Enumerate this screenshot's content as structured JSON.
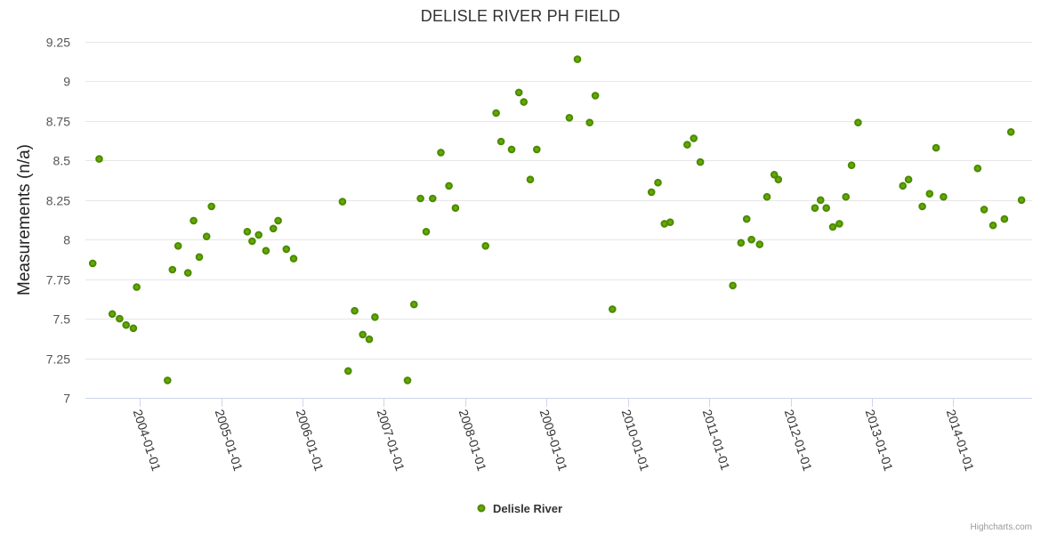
{
  "chart_data": {
    "type": "scatter",
    "title": "DELISLE RIVER PH FIELD",
    "ylabel": "Measurements (n/a)",
    "xlabel": "",
    "ylim": [
      7,
      9.25
    ],
    "yticks": [
      7,
      7.25,
      7.5,
      7.75,
      8,
      8.25,
      8.5,
      8.75,
      9,
      9.25
    ],
    "ytick_labels": [
      "7",
      "7.25",
      "7.5",
      "7.75",
      "8",
      "8.25",
      "8.5",
      "8.75",
      "9",
      "9.25"
    ],
    "xlim": [
      2003.33,
      2014.97
    ],
    "xticks": [
      2004,
      2005,
      2006,
      2007,
      2008,
      2009,
      2010,
      2011,
      2012,
      2013,
      2014
    ],
    "xtick_labels": [
      "2004-01-01",
      "2005-01-01",
      "2006-01-01",
      "2007-01-01",
      "2008-01-01",
      "2009-01-01",
      "2010-01-01",
      "2011-01-01",
      "2012-01-01",
      "2013-01-01",
      "2014-01-01"
    ],
    "grid": true,
    "legend": "bottom-center",
    "series": [
      {
        "name": "Delisle River",
        "color": "#66a800",
        "border_color": "#4a8a00",
        "points": [
          {
            "x": 2003.42,
            "y": 7.85
          },
          {
            "x": 2003.5,
            "y": 8.51
          },
          {
            "x": 2003.66,
            "y": 7.53
          },
          {
            "x": 2003.75,
            "y": 7.5
          },
          {
            "x": 2003.83,
            "y": 7.46
          },
          {
            "x": 2003.92,
            "y": 7.44
          },
          {
            "x": 2003.96,
            "y": 7.7
          },
          {
            "x": 2004.34,
            "y": 7.11
          },
          {
            "x": 2004.4,
            "y": 7.81
          },
          {
            "x": 2004.47,
            "y": 7.96
          },
          {
            "x": 2004.59,
            "y": 7.79
          },
          {
            "x": 2004.66,
            "y": 8.12
          },
          {
            "x": 2004.73,
            "y": 7.89
          },
          {
            "x": 2004.82,
            "y": 8.02
          },
          {
            "x": 2004.88,
            "y": 8.21
          },
          {
            "x": 2005.32,
            "y": 8.05
          },
          {
            "x": 2005.38,
            "y": 7.99
          },
          {
            "x": 2005.46,
            "y": 8.03
          },
          {
            "x": 2005.55,
            "y": 7.93
          },
          {
            "x": 2005.64,
            "y": 8.07
          },
          {
            "x": 2005.7,
            "y": 8.12
          },
          {
            "x": 2005.8,
            "y": 7.94
          },
          {
            "x": 2005.89,
            "y": 7.88
          },
          {
            "x": 2006.49,
            "y": 8.24
          },
          {
            "x": 2006.56,
            "y": 7.17
          },
          {
            "x": 2006.64,
            "y": 7.55
          },
          {
            "x": 2006.74,
            "y": 7.4
          },
          {
            "x": 2006.82,
            "y": 7.37
          },
          {
            "x": 2006.89,
            "y": 7.51
          },
          {
            "x": 2007.29,
            "y": 7.11
          },
          {
            "x": 2007.37,
            "y": 7.59
          },
          {
            "x": 2007.45,
            "y": 8.26
          },
          {
            "x": 2007.52,
            "y": 8.05
          },
          {
            "x": 2007.6,
            "y": 8.26
          },
          {
            "x": 2007.7,
            "y": 8.55
          },
          {
            "x": 2007.8,
            "y": 8.34
          },
          {
            "x": 2007.88,
            "y": 8.2
          },
          {
            "x": 2008.25,
            "y": 7.96
          },
          {
            "x": 2008.38,
            "y": 8.8
          },
          {
            "x": 2008.44,
            "y": 8.62
          },
          {
            "x": 2008.57,
            "y": 8.57
          },
          {
            "x": 2008.66,
            "y": 8.93
          },
          {
            "x": 2008.72,
            "y": 8.87
          },
          {
            "x": 2008.8,
            "y": 8.38
          },
          {
            "x": 2008.88,
            "y": 8.57
          },
          {
            "x": 2009.28,
            "y": 8.77
          },
          {
            "x": 2009.38,
            "y": 9.14
          },
          {
            "x": 2009.53,
            "y": 8.74
          },
          {
            "x": 2009.6,
            "y": 8.91
          },
          {
            "x": 2009.81,
            "y": 7.56
          },
          {
            "x": 2010.29,
            "y": 8.3
          },
          {
            "x": 2010.37,
            "y": 8.36
          },
          {
            "x": 2010.45,
            "y": 8.1
          },
          {
            "x": 2010.52,
            "y": 8.11
          },
          {
            "x": 2010.73,
            "y": 8.6
          },
          {
            "x": 2010.81,
            "y": 8.64
          },
          {
            "x": 2010.89,
            "y": 8.49
          },
          {
            "x": 2011.29,
            "y": 7.71
          },
          {
            "x": 2011.39,
            "y": 7.98
          },
          {
            "x": 2011.46,
            "y": 8.13
          },
          {
            "x": 2011.52,
            "y": 8.0
          },
          {
            "x": 2011.62,
            "y": 7.97
          },
          {
            "x": 2011.71,
            "y": 8.27
          },
          {
            "x": 2011.8,
            "y": 8.41
          },
          {
            "x": 2011.85,
            "y": 8.38
          },
          {
            "x": 2012.3,
            "y": 8.2
          },
          {
            "x": 2012.37,
            "y": 8.25
          },
          {
            "x": 2012.44,
            "y": 8.2
          },
          {
            "x": 2012.52,
            "y": 8.08
          },
          {
            "x": 2012.6,
            "y": 8.1
          },
          {
            "x": 2012.68,
            "y": 8.27
          },
          {
            "x": 2012.75,
            "y": 8.47
          },
          {
            "x": 2012.83,
            "y": 8.74
          },
          {
            "x": 2013.38,
            "y": 8.34
          },
          {
            "x": 2013.45,
            "y": 8.38
          },
          {
            "x": 2013.62,
            "y": 8.21
          },
          {
            "x": 2013.71,
            "y": 8.29
          },
          {
            "x": 2013.79,
            "y": 8.58
          },
          {
            "x": 2013.88,
            "y": 8.27
          },
          {
            "x": 2014.3,
            "y": 8.45
          },
          {
            "x": 2014.38,
            "y": 8.19
          },
          {
            "x": 2014.49,
            "y": 8.09
          },
          {
            "x": 2014.63,
            "y": 8.13
          },
          {
            "x": 2014.71,
            "y": 8.68
          },
          {
            "x": 2014.84,
            "y": 8.25
          }
        ]
      }
    ]
  },
  "credits": "Highcharts.com"
}
